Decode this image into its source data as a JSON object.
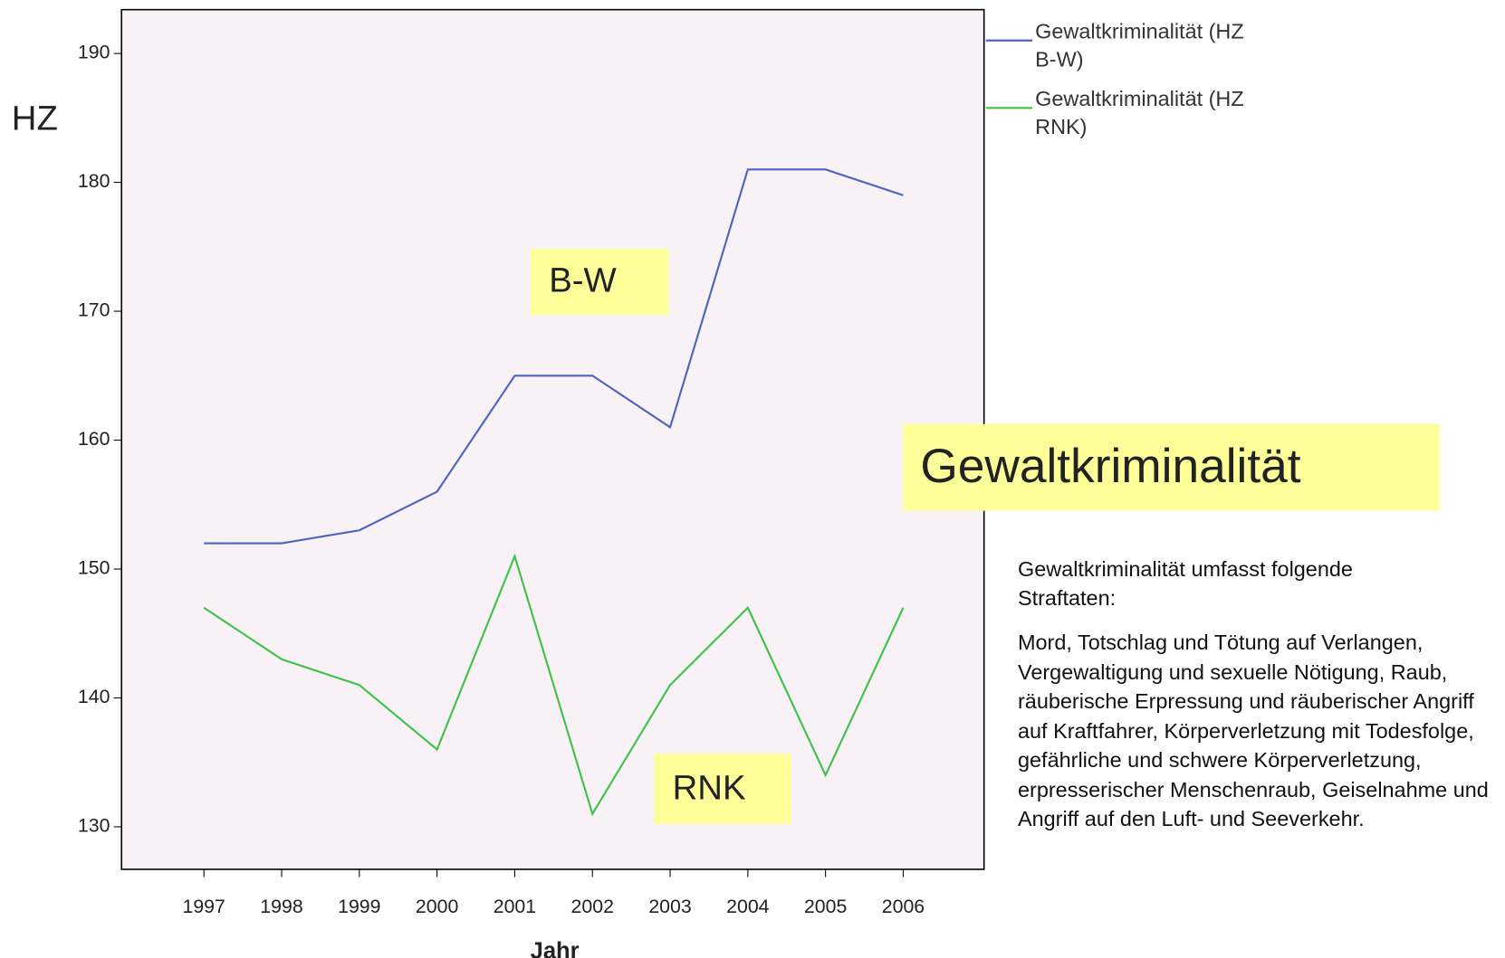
{
  "chart_data": {
    "type": "line",
    "y_label": "HZ",
    "x_label": "Jahr",
    "x": [
      1997,
      1998,
      1999,
      2000,
      2001,
      2002,
      2003,
      2004,
      2005,
      2006
    ],
    "xlim": [
      1995.94,
      2007.04
    ],
    "xticks": [
      1997,
      1998,
      1999,
      2000,
      2001,
      2002,
      2003,
      2004,
      2005,
      2006
    ],
    "ylim": [
      126.7,
      193.4
    ],
    "yticks": [
      130,
      140,
      150,
      160,
      170,
      180,
      190
    ],
    "series": [
      {
        "name": "Gewaltkriminalität (HZ B-W)",
        "color": "#4c64bd",
        "values": [
          152,
          152,
          153,
          156,
          165,
          165,
          161,
          181,
          181,
          179
        ]
      },
      {
        "name": "Gewaltkriminalität (HZ RNK)",
        "color": "#3ec24a",
        "values": [
          147,
          143,
          141,
          136,
          151,
          131,
          141,
          147,
          134,
          147
        ]
      }
    ],
    "annotations": [
      "B-W",
      "RNK"
    ],
    "headline": "Gewaltkriminalität",
    "description": [
      "Gewaltkriminalität umfasst folgende Straftaten:",
      "Mord, Totschlag und Tötung auf Verlangen, Vergewaltigung und sexuelle Nötigung, Raub, räuberische Erpressung und räuberischer Angriff auf Kraftfahrer, Körperverletzung mit Todesfolge, gefährliche und schwere Körperverletzung, erpresserischer Menschenraub, Geiselnahme und Angriff auf den Luft- und Seeverkehr."
    ]
  }
}
